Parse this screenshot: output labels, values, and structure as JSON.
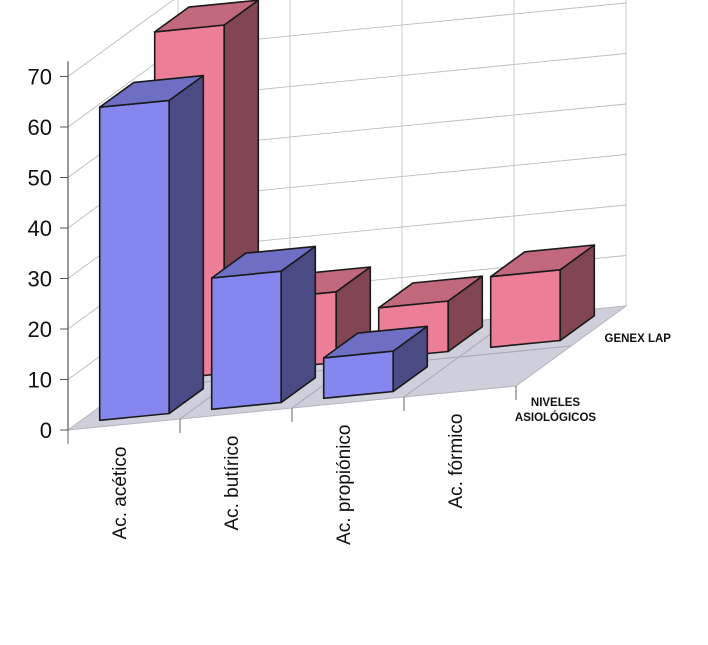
{
  "chart_data": {
    "type": "bar",
    "subtype": "3d-column-depth",
    "categories": [
      "Ac. acético",
      "Ac. butírico",
      "Ac. propiónico",
      "Ac. fórmico"
    ],
    "series": [
      {
        "name": "NIVELES\nASIOLÓGICOS",
        "color": "#8686f0",
        "values": [
          62,
          26,
          8,
          0
        ]
      },
      {
        "name": "GENEX LAP",
        "color": "#ec7f97",
        "values": [
          69,
          14,
          10,
          14
        ]
      }
    ],
    "y_ticks": [
      0,
      10,
      20,
      30,
      40,
      50,
      60,
      70
    ],
    "ylim": [
      0,
      75
    ],
    "grid": true,
    "legend": "none"
  }
}
